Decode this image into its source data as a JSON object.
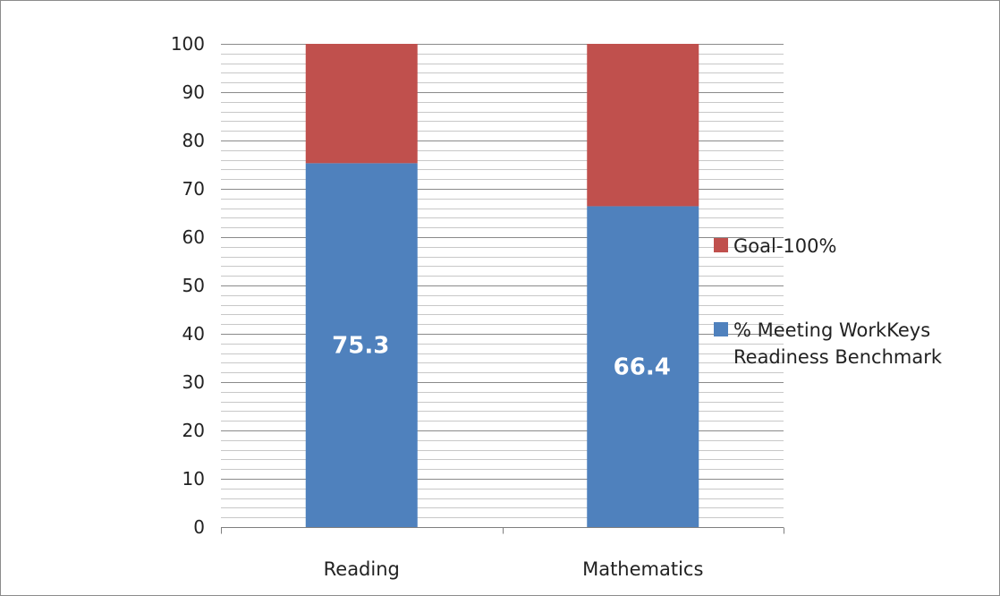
{
  "chart_data": {
    "type": "bar",
    "stacked": true,
    "categories": [
      "Reading",
      "Mathematics"
    ],
    "series": [
      {
        "name": "% Meeting WorkKeys Readiness Benchmark",
        "legend_lines": [
          "% Meeting WorkKeys",
          "Readiness Benchmark"
        ],
        "values": [
          75.3,
          66.4
        ],
        "data_labels": [
          "75.3",
          "66.4"
        ],
        "color": "#4f81bd"
      },
      {
        "name": "Goal-100%",
        "legend_lines": [
          "Goal-100%"
        ],
        "values": [
          24.7,
          33.6
        ],
        "color": "#c0504d"
      }
    ],
    "ylim": [
      0,
      100
    ],
    "yticks": [
      0,
      10,
      20,
      30,
      40,
      50,
      60,
      70,
      80,
      90,
      100
    ],
    "minor_gridlines": true,
    "legend_position": "right",
    "title": "",
    "xlabel": "",
    "ylabel": ""
  }
}
